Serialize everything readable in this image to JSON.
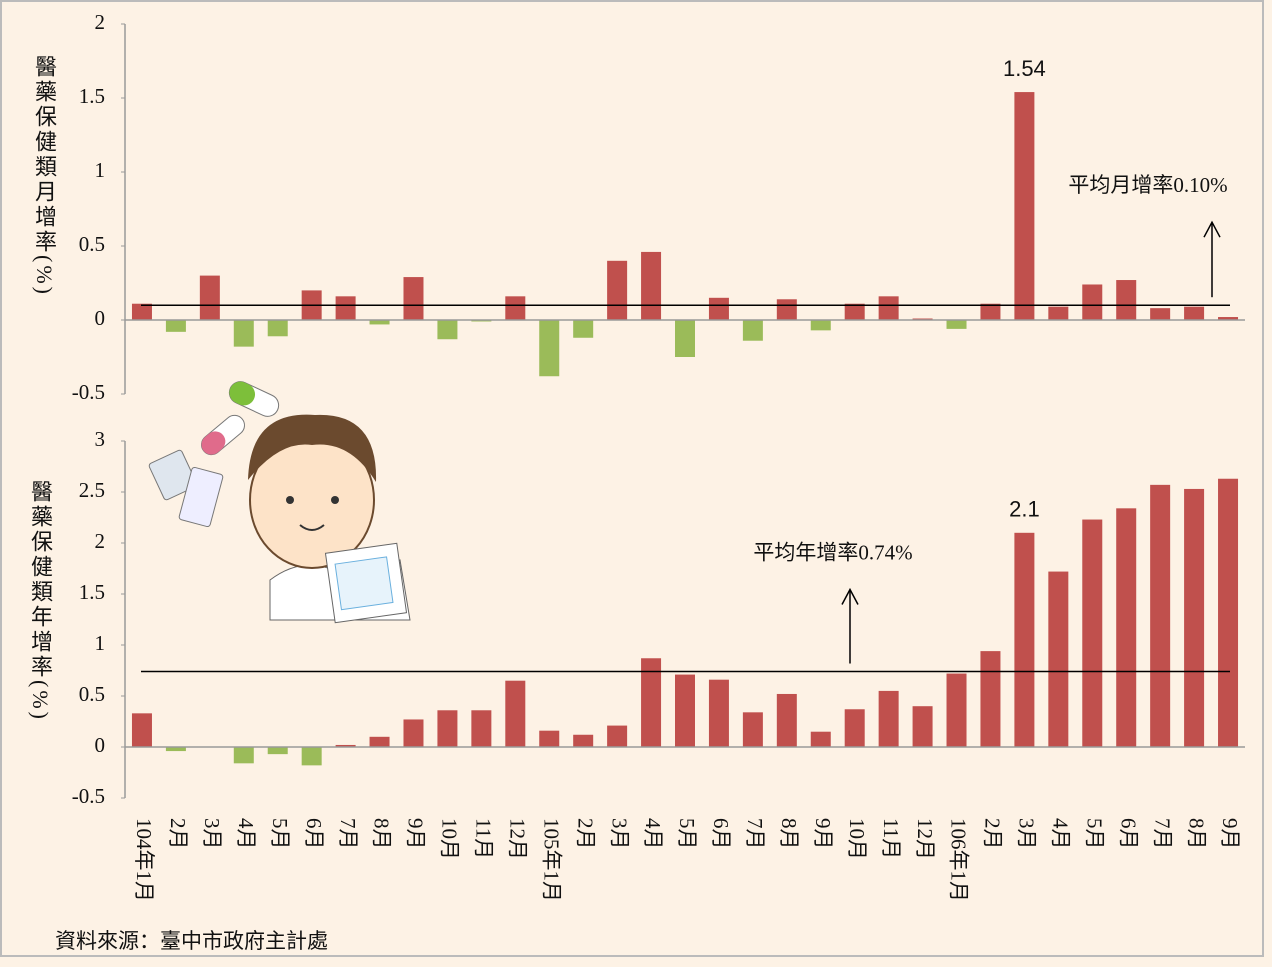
{
  "chart_data": [
    {
      "type": "bar",
      "ylabel": "醫藥保健類月增率(%)",
      "values": [
        0.11,
        -0.08,
        0.3,
        -0.18,
        -0.11,
        0.2,
        0.16,
        -0.03,
        0.29,
        -0.13,
        -0.01,
        0.16,
        -0.38,
        -0.12,
        0.4,
        0.46,
        -0.25,
        0.15,
        -0.14,
        0.14,
        -0.07,
        0.11,
        0.16,
        0.01,
        -0.06,
        0.11,
        1.54,
        0.09,
        0.24,
        0.27,
        0.08,
        0.09,
        0.02
      ],
      "positive_color": "#c0504d",
      "negative_color": "#9bbb59",
      "ylim": [
        -0.5,
        2
      ],
      "yticks": [
        -0.5,
        0,
        0.5,
        1,
        1.5,
        2
      ],
      "data_label_indices": [
        26
      ],
      "average": 0.1,
      "average_label": "平均月增率0.10%"
    },
    {
      "type": "bar",
      "ylabel": "醫藥保健類年增率(%)",
      "categories": [
        "104年1月",
        "2月",
        "3月",
        "4月",
        "5月",
        "6月",
        "7月",
        "8月",
        "9月",
        "10月",
        "11月",
        "12月",
        "105年1月",
        "2月",
        "3月",
        "4月",
        "5月",
        "6月",
        "7月",
        "8月",
        "9月",
        "10月",
        "11月",
        "12月",
        "106年1月",
        "2月",
        "3月",
        "4月",
        "5月",
        "6月",
        "7月",
        "8月",
        "9月"
      ],
      "values": [
        0.33,
        -0.04,
        0,
        -0.16,
        -0.07,
        -0.18,
        0.02,
        0.1,
        0.27,
        0.36,
        0.36,
        0.65,
        0.16,
        0.12,
        0.21,
        0.87,
        0.71,
        0.66,
        0.34,
        0.52,
        0.15,
        0.37,
        0.55,
        0.4,
        0.72,
        0.94,
        2.1,
        1.72,
        2.23,
        2.34,
        2.57,
        2.53,
        2.63
      ],
      "positive_color": "#c0504d",
      "negative_color": "#9bbb59",
      "ylim": [
        -0.5,
        3
      ],
      "yticks": [
        -0.5,
        0,
        0.5,
        1,
        1.5,
        2,
        2.5,
        3
      ],
      "data_label_indices": [
        26
      ],
      "average": 0.74,
      "average_label": "平均年增率0.74%"
    }
  ],
  "source": "資料來源：臺中市政府主計處"
}
